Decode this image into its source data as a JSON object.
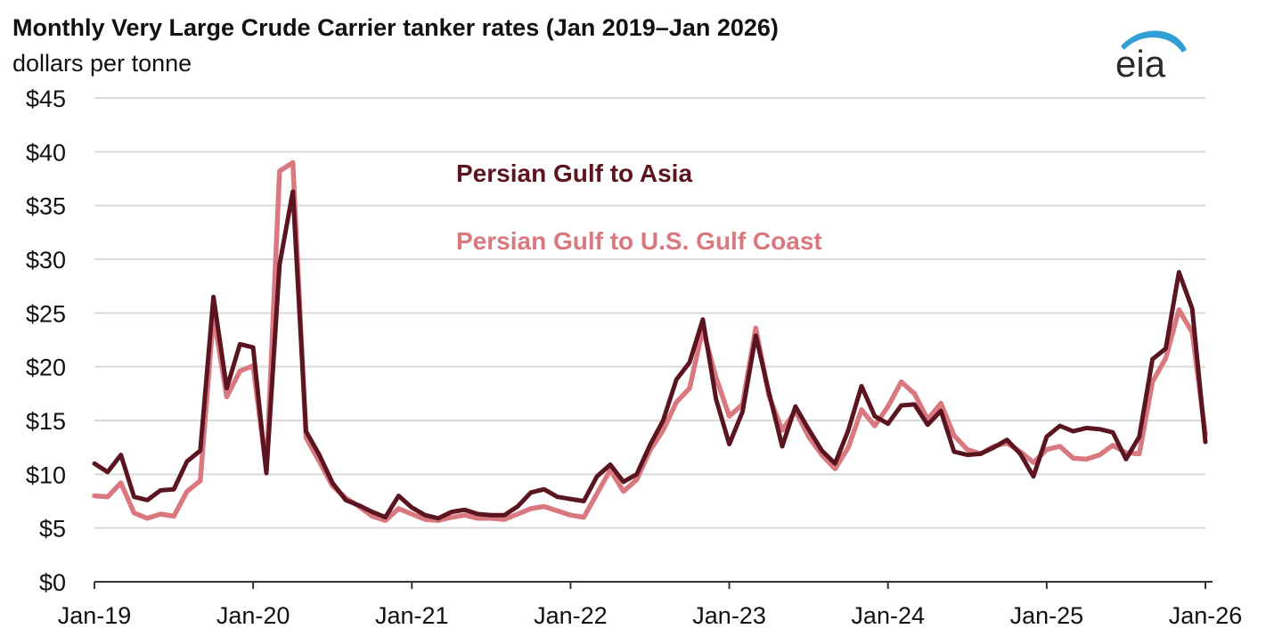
{
  "colors": {
    "asia": "#5b1520",
    "usgc": "#d9787f",
    "grid": "#d9d9d9",
    "axis": "#333333",
    "logo_arc": "#2f9fd6",
    "logo_text": "#2b2b2b"
  },
  "logo": {
    "text": "eia"
  },
  "chart_data": {
    "type": "line",
    "title": "Monthly Very Large Crude Carrier tanker rates (Jan 2019–Jan 2026)",
    "ylabel": "dollars per tonne",
    "ylim": [
      0,
      45
    ],
    "y_ticks": [
      0,
      5,
      10,
      15,
      20,
      25,
      30,
      35,
      40,
      45
    ],
    "y_tick_labels": [
      "$0",
      "$5",
      "$10",
      "$15",
      "$20",
      "$25",
      "$30",
      "$35",
      "$40",
      "$45"
    ],
    "x_start": "2019-01",
    "x_end": "2026-01",
    "x_ticks": [
      "2019-01",
      "2020-01",
      "2021-01",
      "2022-01",
      "2023-01",
      "2024-01",
      "2025-01",
      "2026-01"
    ],
    "x_tick_labels": [
      "Jan-19",
      "Jan-20",
      "Jan-21",
      "Jan-22",
      "Jan-23",
      "Jan-24",
      "Jan-25",
      "Jan-26"
    ],
    "grid": true,
    "legend": "inline-top-center",
    "x": [
      "2019-01",
      "2019-02",
      "2019-03",
      "2019-04",
      "2019-05",
      "2019-06",
      "2019-07",
      "2019-08",
      "2019-09",
      "2019-10",
      "2019-11",
      "2019-12",
      "2020-01",
      "2020-02",
      "2020-03",
      "2020-04",
      "2020-05",
      "2020-06",
      "2020-07",
      "2020-08",
      "2020-09",
      "2020-10",
      "2020-11",
      "2020-12",
      "2021-01",
      "2021-02",
      "2021-03",
      "2021-04",
      "2021-05",
      "2021-06",
      "2021-07",
      "2021-08",
      "2021-09",
      "2021-10",
      "2021-11",
      "2021-12",
      "2022-01",
      "2022-02",
      "2022-03",
      "2022-04",
      "2022-05",
      "2022-06",
      "2022-07",
      "2022-08",
      "2022-09",
      "2022-10",
      "2022-11",
      "2022-12",
      "2023-01",
      "2023-02",
      "2023-03",
      "2023-04",
      "2023-05",
      "2023-06",
      "2023-07",
      "2023-08",
      "2023-09",
      "2023-10",
      "2023-11",
      "2023-12",
      "2024-01",
      "2024-02",
      "2024-03",
      "2024-04",
      "2024-05",
      "2024-06",
      "2024-07",
      "2024-08",
      "2024-09",
      "2024-10",
      "2024-11",
      "2024-12",
      "2025-01",
      "2025-02",
      "2025-03",
      "2025-04",
      "2025-05",
      "2025-06",
      "2025-07",
      "2025-08",
      "2025-09",
      "2025-10",
      "2025-11",
      "2025-12",
      "2026-01"
    ],
    "series": [
      {
        "name": "Persian Gulf to Asia",
        "color": "#5b1520",
        "values": [
          11.0,
          10.2,
          11.8,
          7.9,
          7.6,
          8.5,
          8.6,
          11.2,
          12.2,
          26.5,
          18.0,
          22.1,
          21.8,
          10.1,
          29.5,
          36.3,
          14.0,
          11.8,
          9.2,
          7.6,
          7.1,
          6.5,
          6.0,
          8.0,
          6.9,
          6.2,
          5.9,
          6.5,
          6.7,
          6.3,
          6.2,
          6.2,
          7.0,
          8.3,
          8.6,
          7.9,
          7.7,
          7.5,
          9.8,
          10.9,
          9.3,
          10.0,
          12.7,
          15.0,
          18.8,
          20.4,
          24.4,
          17.0,
          12.8,
          15.8,
          22.9,
          17.6,
          12.6,
          16.3,
          14.2,
          12.2,
          11.0,
          14.1,
          18.2,
          15.4,
          14.7,
          16.4,
          16.5,
          14.6,
          15.9,
          12.1,
          11.8,
          11.9,
          12.5,
          13.2,
          11.9,
          9.8,
          13.5,
          14.5,
          14.0,
          14.3,
          14.2,
          13.9,
          11.4,
          13.5,
          20.7,
          21.7,
          28.8,
          25.4,
          13.0
        ]
      },
      {
        "name": "Persian Gulf to U.S. Gulf Coast",
        "color": "#d9787f",
        "values": [
          8.0,
          7.9,
          9.2,
          6.4,
          5.9,
          6.3,
          6.1,
          8.4,
          9.4,
          24.8,
          17.2,
          19.6,
          20.1,
          10.4,
          38.2,
          39.0,
          13.4,
          11.2,
          8.9,
          7.8,
          7.0,
          6.1,
          5.7,
          6.8,
          6.3,
          5.8,
          5.7,
          6.0,
          6.2,
          5.9,
          5.9,
          5.8,
          6.3,
          6.8,
          7.0,
          6.6,
          6.2,
          6.0,
          8.2,
          10.4,
          8.4,
          9.5,
          12.2,
          14.1,
          16.7,
          18.0,
          23.5,
          19.0,
          15.4,
          16.5,
          23.6,
          17.3,
          14.1,
          15.9,
          13.5,
          11.8,
          10.5,
          12.5,
          16.0,
          14.5,
          16.3,
          18.6,
          17.5,
          15.1,
          16.6,
          13.6,
          12.3,
          11.9,
          12.6,
          12.9,
          12.1,
          11.1,
          12.3,
          12.6,
          11.5,
          11.4,
          11.8,
          12.7,
          12.0,
          11.9,
          18.6,
          20.8,
          25.3,
          23.2,
          13.7
        ]
      }
    ]
  }
}
